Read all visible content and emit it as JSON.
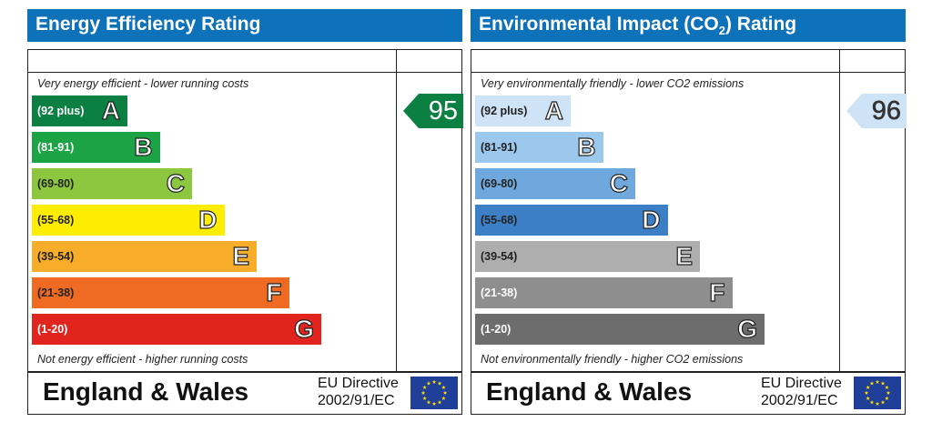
{
  "chart_data": [
    {
      "type": "bar",
      "title": "Energy Efficiency Rating",
      "caption_top": "Very energy efficient - lower running costs",
      "caption_bottom": "Not energy efficient - higher running costs",
      "categories": [
        "A",
        "B",
        "C",
        "D",
        "E",
        "F",
        "G"
      ],
      "ranges": [
        "(92 plus)",
        "(81-91)",
        "(69-80)",
        "(55-68)",
        "(39-54)",
        "(21-38)",
        "(1-20)"
      ],
      "colors": [
        "#0c8042",
        "#1ba345",
        "#8dc63f",
        "#ffed00",
        "#f7ad2a",
        "#ef6a23",
        "#e1241d"
      ],
      "range_text_colors": [
        "#ffffff",
        "#ffffff",
        "#222222",
        "#222222",
        "#222222",
        "#222222",
        "#ffffff"
      ],
      "current": {
        "value": 95,
        "band": "A"
      }
    },
    {
      "type": "bar",
      "title": "Environmental Impact (CO2) Rating",
      "title_main": "Environmental Impact (CO",
      "title_sub": "2",
      "title_end": ") Rating",
      "caption_top": "Very environmentally friendly - lower CO2 emissions",
      "caption_bottom": "Not environmentally friendly - higher CO2 emissions",
      "categories": [
        "A",
        "B",
        "C",
        "D",
        "E",
        "F",
        "G"
      ],
      "ranges": [
        "(92 plus)",
        "(81-91)",
        "(69-80)",
        "(55-68)",
        "(39-54)",
        "(21-38)",
        "(1-20)"
      ],
      "colors": [
        "#cfe3f6",
        "#9cc8ee",
        "#6fa8dc",
        "#3d7fc6",
        "#aeaeae",
        "#8e8e8e",
        "#6d6d6d"
      ],
      "range_text_colors": [
        "#222222",
        "#222222",
        "#222222",
        "#222222",
        "#222222",
        "#ffffff",
        "#ffffff"
      ],
      "current": {
        "value": 96,
        "band": "A"
      }
    }
  ],
  "footer": {
    "region": "England & Wales",
    "directive_line1": "EU Directive",
    "directive_line2": "2002/91/EC",
    "flag_icon": "eu-flag-icon"
  }
}
